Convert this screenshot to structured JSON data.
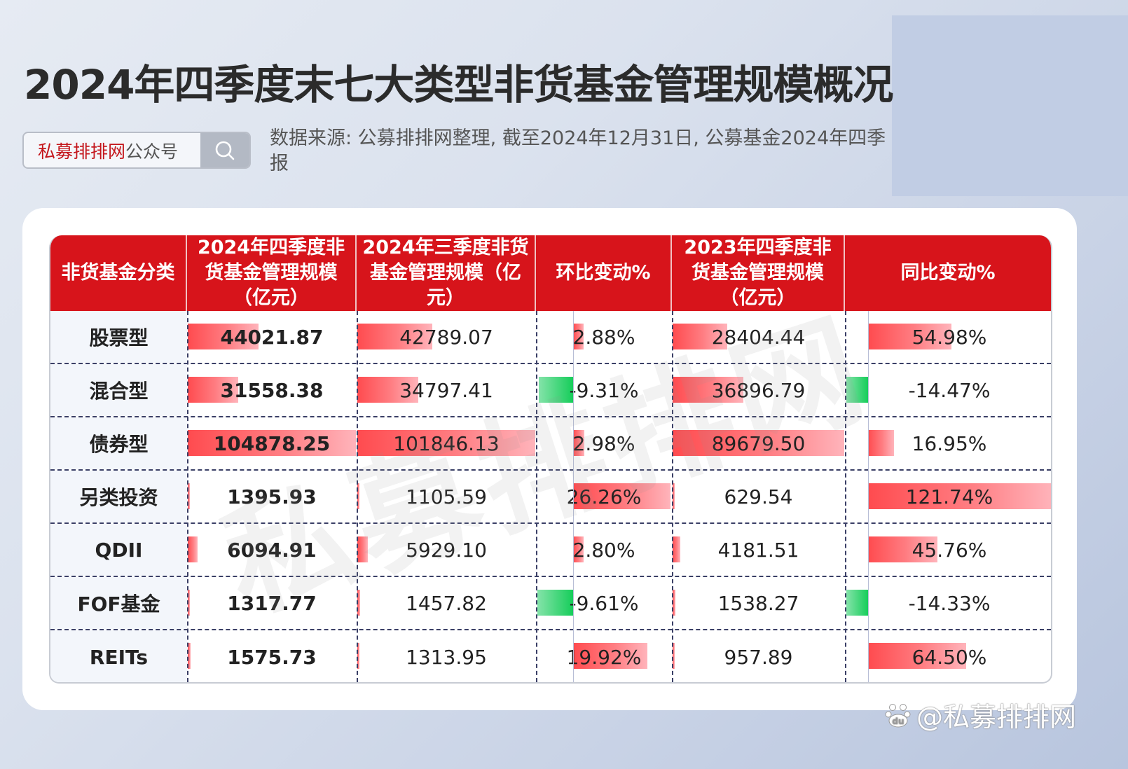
{
  "header": {
    "title": "2024年四季度末七大类型非货基金管理规模概况",
    "search_box": {
      "brand": "私募排排网",
      "suffix": "公众号",
      "icon": "search-icon"
    },
    "source_note": "数据来源: 公募排排网整理, 截至2024年12月31日, 公募基金2024年四季报"
  },
  "table": {
    "columns": [
      "非货基金分类",
      "2024年四季度非货基金管理规模（亿元）",
      "2024年三季度非货基金管理规模（亿元）",
      "环比变动%",
      "2023年四季度非货基金管理规模（亿元）",
      "同比变动%"
    ],
    "rows": [
      {
        "category": "股票型",
        "q4_2024": "44021.87",
        "q3_2024": "42789.07",
        "qoq": "2.88%",
        "q4_2023": "28404.44",
        "yoy": "54.98%"
      },
      {
        "category": "混合型",
        "q4_2024": "31558.38",
        "q3_2024": "34797.41",
        "qoq": "-9.31%",
        "q4_2023": "36896.79",
        "yoy": "-14.47%"
      },
      {
        "category": "债券型",
        "q4_2024": "104878.25",
        "q3_2024": "101846.13",
        "qoq": "2.98%",
        "q4_2023": "89679.50",
        "yoy": "16.95%"
      },
      {
        "category": "另类投资",
        "q4_2024": "1395.93",
        "q3_2024": "1105.59",
        "qoq": "26.26%",
        "q4_2023": "629.54",
        "yoy": "121.74%"
      },
      {
        "category": "QDII",
        "q4_2024": "6094.91",
        "q3_2024": "5929.10",
        "qoq": "2.80%",
        "q4_2023": "4181.51",
        "yoy": "45.76%"
      },
      {
        "category": "FOF基金",
        "q4_2024": "1317.77",
        "q3_2024": "1457.82",
        "qoq": "-9.61%",
        "q4_2023": "1538.27",
        "yoy": "-14.33%"
      },
      {
        "category": "REITs",
        "q4_2024": "1575.73",
        "q3_2024": "1313.95",
        "qoq": "19.92%",
        "q4_2023": "957.89",
        "yoy": "64.50%"
      }
    ]
  },
  "watermark": "私募排排网",
  "footer_watermark": "@私募排排网",
  "colors": {
    "header_red": "#d7141b",
    "bar_positive": "#ff4b4f",
    "bar_negative": "#16cd5a",
    "brand_red": "#c4161c"
  },
  "chart_data": {
    "type": "table",
    "title": "2024年四季度末七大类型非货基金管理规模概况",
    "categories": [
      "股票型",
      "混合型",
      "债券型",
      "另类投资",
      "QDII",
      "FOF基金",
      "REITs"
    ],
    "series": [
      {
        "name": "2024年四季度非货基金管理规模（亿元）",
        "values": [
          44021.87,
          31558.38,
          104878.25,
          1395.93,
          6094.91,
          1317.77,
          1575.73
        ]
      },
      {
        "name": "2024年三季度非货基金管理规模（亿元）",
        "values": [
          42789.07,
          34797.41,
          101846.13,
          1105.59,
          5929.1,
          1457.82,
          1313.95
        ]
      },
      {
        "name": "环比变动%",
        "values": [
          2.88,
          -9.31,
          2.98,
          26.26,
          2.8,
          -9.61,
          19.92
        ]
      },
      {
        "name": "2023年四季度非货基金管理规模（亿元）",
        "values": [
          28404.44,
          36896.79,
          89679.5,
          629.54,
          4181.51,
          1538.27,
          957.89
        ]
      },
      {
        "name": "同比变动%",
        "values": [
          54.98,
          -14.47,
          16.95,
          121.74,
          45.76,
          -14.33,
          64.5
        ]
      }
    ],
    "note": "Cells contain in-cell data bars: red for positive values, green for negative changes"
  }
}
